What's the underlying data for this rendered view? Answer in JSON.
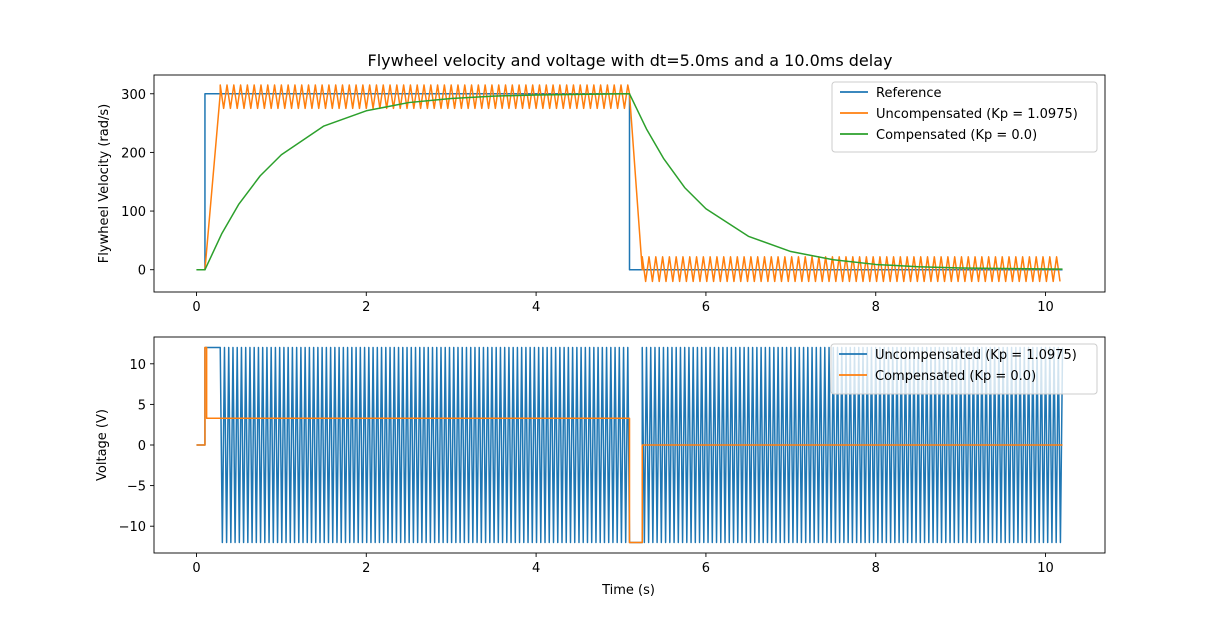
{
  "figure": {
    "title": "Flywheel velocity and voltage with dt=5.0ms and a 10.0ms delay"
  },
  "chart_data": [
    {
      "type": "line",
      "title": "Flywheel velocity and voltage with dt=5.0ms and a 10.0ms delay",
      "xlabel": "",
      "ylabel": "Flywheel Velocity (rad/s)",
      "xlim": [
        -0.5,
        10.7
      ],
      "ylim": [
        -38,
        332
      ],
      "xticks": [
        0,
        2,
        4,
        6,
        8,
        10
      ],
      "yticks": [
        0,
        100,
        200,
        300
      ],
      "grid": false,
      "legend_position": "top-right",
      "series": [
        {
          "name": "Reference",
          "color": "#1f77b4",
          "description": "step 0 to 300 at t=0.1, back to 0 at t=5.1",
          "points": [
            [
              0,
              0
            ],
            [
              0.1,
              0
            ],
            [
              0.1,
              300
            ],
            [
              5.1,
              300
            ],
            [
              5.1,
              0
            ],
            [
              10.2,
              0
            ]
          ]
        },
        {
          "name": "Uncompensated (Kp = 1.0975)",
          "color": "#ff7f0e",
          "ramp_up": [
            [
              0,
              0
            ],
            [
              0.1,
              0
            ],
            [
              0.28,
              300
            ]
          ],
          "high_oscillation": {
            "t_start": 0.28,
            "t_end": 5.1,
            "center": 295,
            "min": 275,
            "max": 315,
            "period": 0.08
          },
          "ramp_down": [
            [
              5.1,
              300
            ],
            [
              5.25,
              0
            ]
          ],
          "low_oscillation": {
            "t_start": 5.25,
            "t_end": 10.2,
            "center": 0,
            "min": -20,
            "max": 22,
            "period": 0.08
          }
        },
        {
          "name": "Compensated (Kp = 0.0)",
          "color": "#2ca02c",
          "points": [
            [
              0,
              0
            ],
            [
              0.1,
              0
            ],
            [
              0.3,
              62
            ],
            [
              0.5,
              112
            ],
            [
              0.75,
              160
            ],
            [
              1.0,
              196
            ],
            [
              1.5,
              245
            ],
            [
              2.0,
              271
            ],
            [
              2.5,
              285
            ],
            [
              3.0,
              292
            ],
            [
              3.5,
              296
            ],
            [
              4.0,
              298
            ],
            [
              4.5,
              299
            ],
            [
              5.1,
              300
            ],
            [
              5.3,
              240
            ],
            [
              5.5,
              190
            ],
            [
              5.75,
              140
            ],
            [
              6.0,
              104
            ],
            [
              6.5,
              57
            ],
            [
              7.0,
              31
            ],
            [
              7.5,
              17
            ],
            [
              8.0,
              9
            ],
            [
              8.5,
              5
            ],
            [
              9.0,
              3
            ],
            [
              9.5,
              2
            ],
            [
              10.2,
              1
            ]
          ]
        }
      ]
    },
    {
      "type": "line",
      "title": "",
      "xlabel": "Time (s)",
      "ylabel": "Voltage (V)",
      "xlim": [
        -0.5,
        10.7
      ],
      "ylim": [
        -13.3,
        13.3
      ],
      "xticks": [
        0,
        2,
        4,
        6,
        8,
        10
      ],
      "yticks": [
        -10,
        -5,
        0,
        5,
        10
      ],
      "grid": false,
      "legend_position": "top-right",
      "series": [
        {
          "name": "Uncompensated (Kp = 1.0975)",
          "color": "#1f77b4",
          "lead_in": [
            [
              0,
              0
            ],
            [
              0.1,
              0
            ],
            [
              0.1,
              12
            ],
            [
              0.28,
              12
            ]
          ],
          "oscillation_1": {
            "t_start": 0.28,
            "t_end": 5.1,
            "min": -12,
            "max": 12,
            "period": 0.05
          },
          "gap": [
            [
              5.1,
              -12
            ],
            [
              5.25,
              -12
            ]
          ],
          "oscillation_2": {
            "t_start": 5.25,
            "t_end": 10.2,
            "min": -12,
            "max": 12,
            "period": 0.05
          }
        },
        {
          "name": "Compensated (Kp = 0.0)",
          "color": "#ff7f0e",
          "points": [
            [
              0,
              0
            ],
            [
              0.1,
              0
            ],
            [
              0.1,
              12
            ],
            [
              0.12,
              12
            ],
            [
              0.12,
              3.3
            ],
            [
              5.1,
              3.3
            ],
            [
              5.1,
              -12
            ],
            [
              5.25,
              -12
            ],
            [
              5.25,
              0
            ],
            [
              10.2,
              0
            ]
          ]
        }
      ]
    }
  ]
}
